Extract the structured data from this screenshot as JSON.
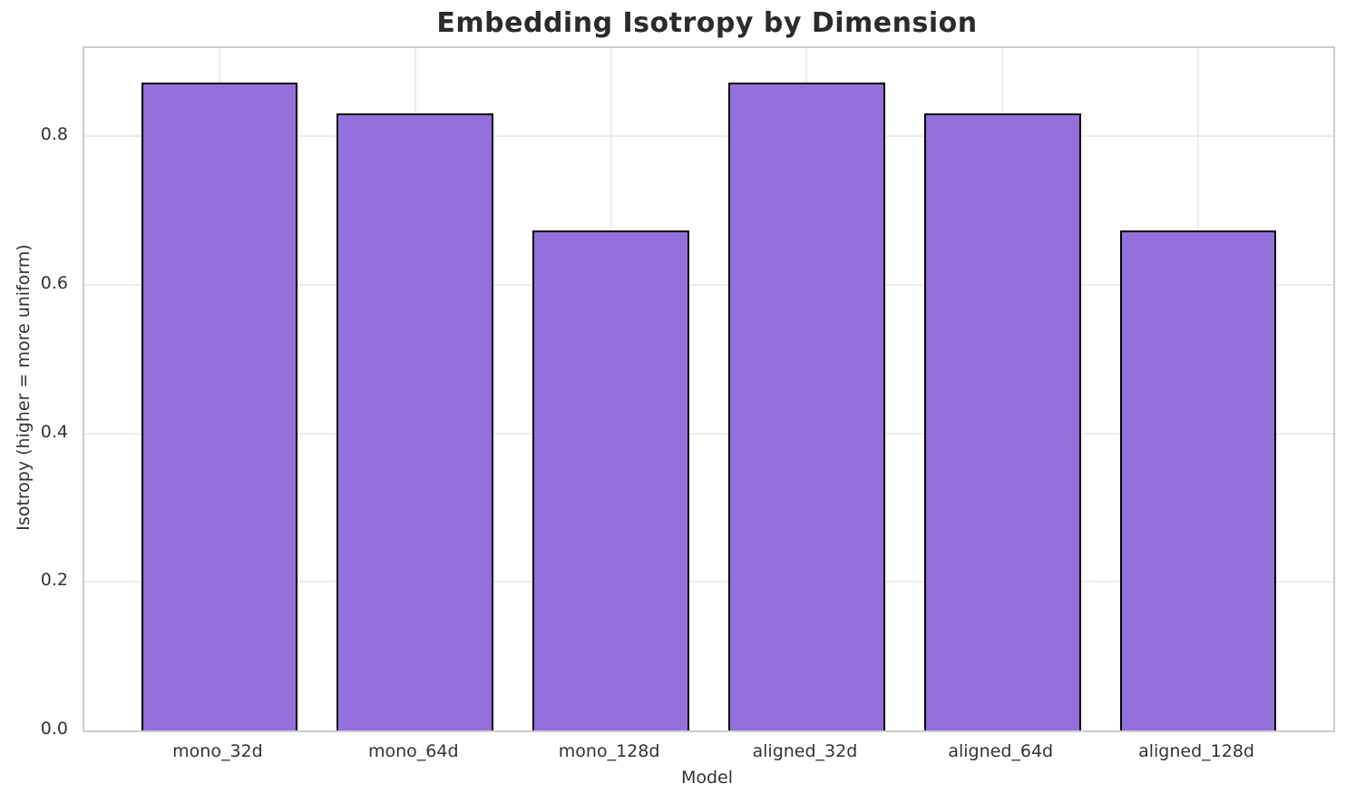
{
  "chart_data": {
    "type": "bar",
    "title": "Embedding Isotropy by Dimension",
    "xlabel": "Model",
    "ylabel": "Isotropy (higher = more uniform)",
    "categories": [
      "mono_32d",
      "mono_64d",
      "mono_128d",
      "aligned_32d",
      "aligned_64d",
      "aligned_128d"
    ],
    "values": [
      0.873,
      0.831,
      0.673,
      0.873,
      0.831,
      0.673
    ],
    "ylim": [
      0,
      0.919
    ],
    "ytick_labels": [
      "0.0",
      "0.2",
      "0.4",
      "0.6",
      "0.8"
    ],
    "ytick_values": [
      0.0,
      0.2,
      0.4,
      0.6,
      0.8
    ],
    "grid": true,
    "legend": "none",
    "colors": {
      "bar_fill": "#9370DB",
      "bar_edge": "#000000",
      "gridline": "#ececec",
      "spine": "#cccccc",
      "tick_text": "#333333",
      "title_text": "#2b2b2b",
      "background": "#ffffff"
    }
  }
}
